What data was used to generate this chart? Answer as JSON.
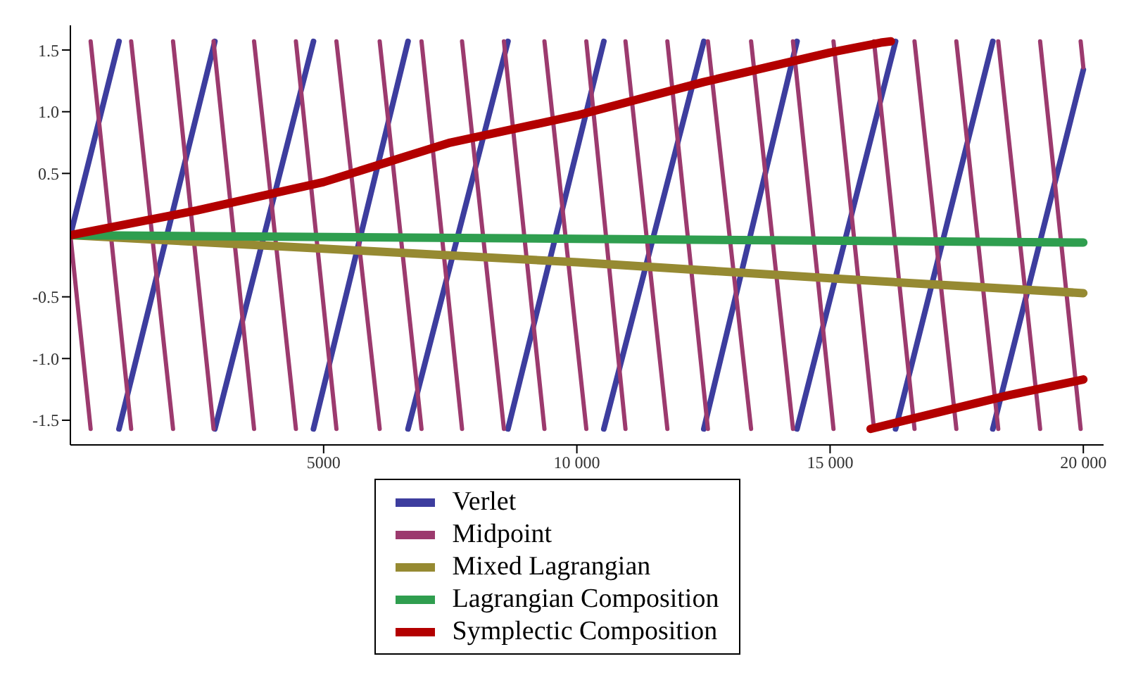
{
  "chart_data": {
    "type": "line",
    "xlim": [
      0,
      20400
    ],
    "ylim": [
      -1.7,
      1.7
    ],
    "xticks": [
      5000,
      {
        "value": 10000,
        "label": "10 000"
      },
      {
        "value": 15000,
        "label": "15 000"
      },
      {
        "value": 20000,
        "label": "20 000"
      }
    ],
    "yticks": [
      -1.5,
      {
        "value": -1,
        "label": "-1.0"
      },
      -0.5,
      0.5,
      {
        "value": 1,
        "label": "1.0"
      },
      1.5
    ],
    "grid": false,
    "legend": "bottom",
    "marker": "none",
    "line_style": "solid",
    "series": [
      {
        "name": "Verlet",
        "color": "#3d3d9e",
        "x": [
          0,
          960,
          null,
          960,
          2853,
          null,
          2853,
          4800,
          null,
          4800,
          6667,
          null,
          6667,
          8640,
          null,
          8640,
          10533,
          null,
          10533,
          12507,
          null,
          12507,
          14347,
          null,
          14347,
          16293,
          null,
          16293,
          18213,
          null,
          18213,
          20000
        ],
        "values": [
          0,
          1.57,
          null,
          -1.57,
          1.57,
          null,
          -1.57,
          1.57,
          null,
          -1.57,
          1.57,
          null,
          -1.57,
          1.57,
          null,
          -1.57,
          1.57,
          null,
          -1.57,
          1.57,
          null,
          -1.57,
          1.57,
          null,
          -1.57,
          1.57,
          null,
          -1.57,
          1.57,
          null,
          -1.57,
          1.34
        ]
      },
      {
        "name": "Midpoint",
        "color": "#9c3a6e",
        "x": [
          0,
          400,
          null,
          400,
          1200,
          null,
          1200,
          2027,
          null,
          2027,
          2827,
          null,
          2827,
          3627,
          null,
          3627,
          4453,
          null,
          4453,
          5253,
          null,
          5253,
          6107,
          null,
          6107,
          6933,
          null,
          6933,
          7733,
          null,
          7733,
          8560,
          null,
          8560,
          9360,
          null,
          9360,
          10187,
          null,
          10187,
          10960,
          null,
          10960,
          11787,
          null,
          11787,
          12587,
          null,
          12587,
          13440,
          null,
          13440,
          14267,
          null,
          14267,
          15067,
          null,
          15067,
          15867,
          null,
          15867,
          16667,
          null,
          16667,
          17493,
          null,
          17493,
          18320,
          null,
          18320,
          19147,
          null,
          19147,
          19947,
          null,
          19947,
          20000
        ],
        "values": [
          0,
          -1.57,
          null,
          1.57,
          -1.57,
          null,
          1.57,
          -1.57,
          null,
          1.57,
          -1.57,
          null,
          1.57,
          -1.57,
          null,
          1.57,
          -1.57,
          null,
          1.57,
          -1.57,
          null,
          1.57,
          -1.57,
          null,
          1.57,
          -1.57,
          null,
          1.57,
          -1.57,
          null,
          1.57,
          -1.57,
          null,
          1.57,
          -1.57,
          null,
          1.57,
          -1.57,
          null,
          1.57,
          -1.57,
          null,
          1.57,
          -1.57,
          null,
          1.57,
          -1.57,
          null,
          1.57,
          -1.57,
          null,
          1.57,
          -1.57,
          null,
          1.57,
          -1.57,
          null,
          1.57,
          -1.57,
          null,
          1.57,
          -1.57,
          null,
          1.57,
          -1.57,
          null,
          1.57,
          -1.57,
          null,
          1.57,
          -1.57,
          null,
          1.57,
          -1.57,
          null,
          1.57,
          1.36
        ]
      },
      {
        "name": "Mixed Lagrangian",
        "color": "#968a32",
        "x": [
          0,
          5000,
          10000,
          15000,
          20000
        ],
        "values": [
          0,
          -0.11,
          -0.22,
          -0.35,
          -0.47
        ]
      },
      {
        "name": "Lagrangian Composition",
        "color": "#2f9e4f",
        "x": [
          0,
          10000,
          20000
        ],
        "values": [
          0,
          -0.03,
          -0.06
        ]
      },
      {
        "name": "Symplectic Composition",
        "color": "#b30000",
        "x": [
          0,
          2500,
          5000,
          7500,
          10000,
          12500,
          15000,
          16000,
          16200,
          null,
          15800,
          17000,
          18500,
          20000
        ],
        "values": [
          0,
          0.2,
          0.43,
          0.75,
          0.97,
          1.24,
          1.48,
          1.56,
          1.57,
          null,
          -1.57,
          -1.45,
          -1.3,
          -1.17
        ]
      }
    ]
  }
}
